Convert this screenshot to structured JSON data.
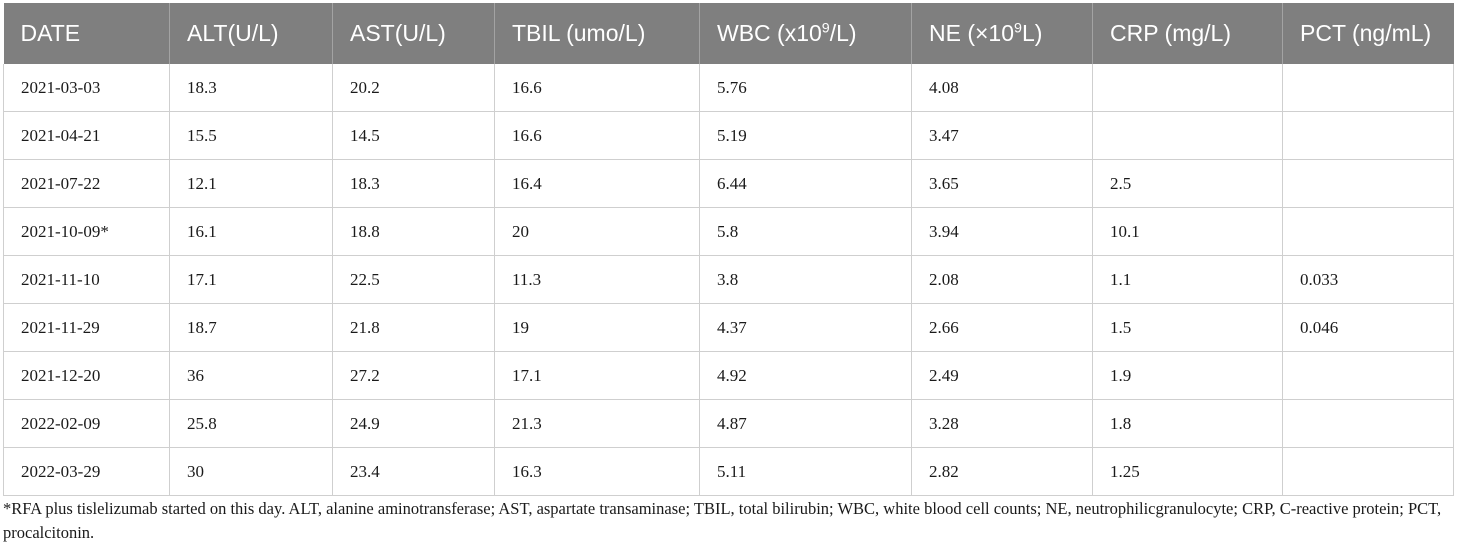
{
  "table": {
    "headers": [
      {
        "label": "DATE"
      },
      {
        "label": "ALT(U/L)"
      },
      {
        "label": "AST(U/L)"
      },
      {
        "label": "TBIL (umo/L)"
      },
      {
        "label_pre": "WBC (x10",
        "label_sup": "9",
        "label_post": "/L)"
      },
      {
        "label_pre": "NE (×10",
        "label_sup": "9",
        "label_post": "L)"
      },
      {
        "label": "CRP (mg/L)"
      },
      {
        "label": "PCT (ng/mL)"
      }
    ],
    "rows": [
      [
        "2021-03-03",
        "18.3",
        "20.2",
        "16.6",
        "5.76",
        "4.08",
        "",
        ""
      ],
      [
        "2021-04-21",
        "15.5",
        "14.5",
        "16.6",
        "5.19",
        "3.47",
        "",
        ""
      ],
      [
        "2021-07-22",
        "12.1",
        "18.3",
        "16.4",
        "6.44",
        "3.65",
        "2.5",
        ""
      ],
      [
        "2021-10-09*",
        "16.1",
        "18.8",
        "20",
        "5.8",
        "3.94",
        "10.1",
        ""
      ],
      [
        "2021-11-10",
        "17.1",
        "22.5",
        "11.3",
        "3.8",
        "2.08",
        "1.1",
        "0.033"
      ],
      [
        "2021-11-29",
        "18.7",
        "21.8",
        "19",
        "4.37",
        "2.66",
        "1.5",
        "0.046"
      ],
      [
        "2021-12-20",
        "36",
        "27.2",
        "17.1",
        "4.92",
        "2.49",
        "1.9",
        ""
      ],
      [
        "2022-02-09",
        "25.8",
        "24.9",
        "21.3",
        "4.87",
        "3.28",
        "1.8",
        ""
      ],
      [
        "2022-03-29",
        "30",
        "23.4",
        "16.3",
        "5.11",
        "2.82",
        "1.25",
        ""
      ]
    ]
  },
  "footnote": "*RFA plus tislelizumab started on this day. ALT, alanine aminotransferase; AST, aspartate transaminase; TBIL, total bilirubin; WBC, white blood cell counts; NE, neutrophilicgranulocyte; CRP, C-reactive protein; PCT, procalcitonin."
}
